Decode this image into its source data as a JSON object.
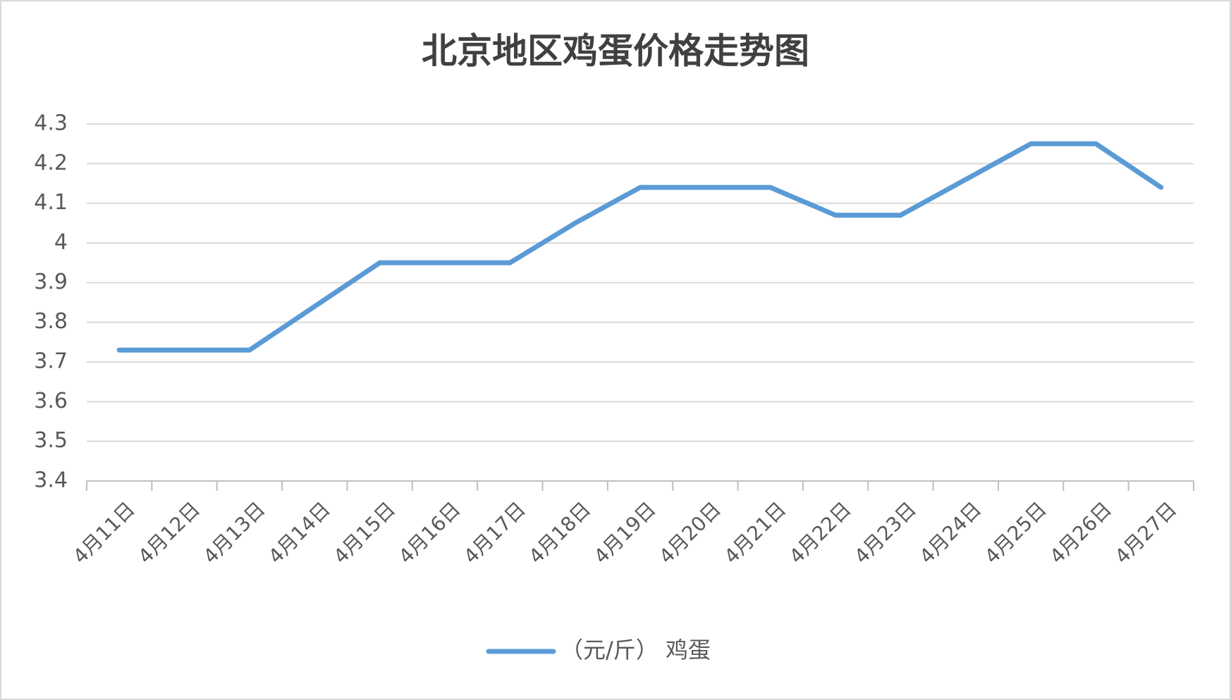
{
  "chart_data": {
    "type": "line",
    "title": "北京地区鸡蛋价格走势图",
    "categories": [
      "4月11日",
      "4月12日",
      "4月13日",
      "4月14日",
      "4月15日",
      "4月16日",
      "4月17日",
      "4月18日",
      "4月19日",
      "4月20日",
      "4月21日",
      "4月22日",
      "4月23日",
      "4月24日",
      "4月25日",
      "4月26日",
      "4月27日"
    ],
    "series": [
      {
        "name": "（元/斤） 鸡蛋",
        "color": "#5b9bd5",
        "values": [
          3.73,
          3.73,
          3.73,
          3.84,
          3.95,
          3.95,
          3.95,
          4.05,
          4.14,
          4.14,
          4.14,
          4.07,
          4.07,
          4.16,
          4.25,
          4.25,
          4.14
        ]
      }
    ],
    "ylim": [
      3.4,
      4.3
    ],
    "yticks": [
      3.4,
      3.5,
      3.6,
      3.7,
      3.8,
      3.9,
      4,
      4.1,
      4.2,
      4.3
    ],
    "grid": true,
    "legend": "bottom"
  }
}
